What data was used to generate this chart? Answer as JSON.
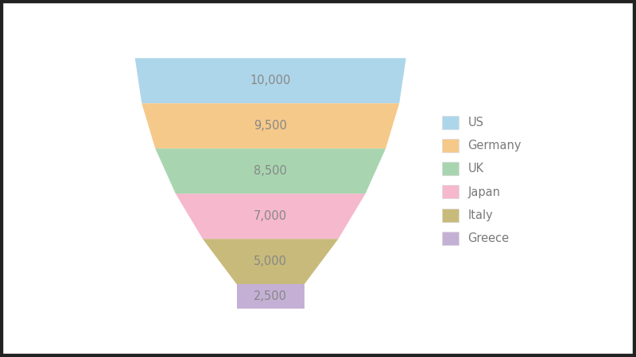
{
  "segments": [
    {
      "label": "US",
      "value": 10000,
      "color": "#aed6ea"
    },
    {
      "label": "Germany",
      "value": 9500,
      "color": "#f5c98a"
    },
    {
      "label": "UK",
      "value": 8500,
      "color": "#a8d5b0"
    },
    {
      "label": "Japan",
      "value": 7000,
      "color": "#f5b8cc"
    },
    {
      "label": "Italy",
      "value": 5000,
      "color": "#c8ba7a"
    },
    {
      "label": "Greece",
      "value": 2500,
      "color": "#c5b0d5"
    }
  ],
  "background_color": "#ffffff",
  "text_color": "#888888",
  "label_fontsize": 10.5,
  "legend_fontsize": 10.5,
  "legend_text_color": "#7a7a7a",
  "fig_bg": "#ffffff",
  "border_color": "#222222",
  "border_width": 6
}
